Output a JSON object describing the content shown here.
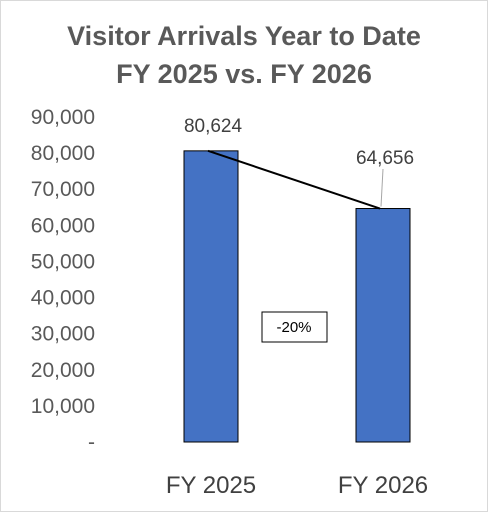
{
  "chart_data": {
    "type": "bar",
    "title": "Visitor Arrivals Year to Date",
    "subtitle": "FY 2025 vs. FY 2026",
    "categories": [
      "FY 2025",
      "FY 2026"
    ],
    "values": [
      80624,
      64656
    ],
    "data_labels": [
      "80,624",
      "64,656"
    ],
    "ylim": [
      0,
      90000
    ],
    "yticks": [
      0,
      10000,
      20000,
      30000,
      40000,
      50000,
      60000,
      70000,
      80000,
      90000
    ],
    "ytick_labels": [
      "-",
      "10,000",
      "20,000",
      "30,000",
      "40,000",
      "50,000",
      "60,000",
      "70,000",
      "80,000",
      "90,000"
    ],
    "xlabel": "",
    "ylabel": "",
    "grid": false,
    "legend": "none",
    "bar_color": "#4472C4",
    "bar_edge_color": "#000000",
    "annotation": {
      "text": "-20%",
      "connector_line": true
    }
  }
}
